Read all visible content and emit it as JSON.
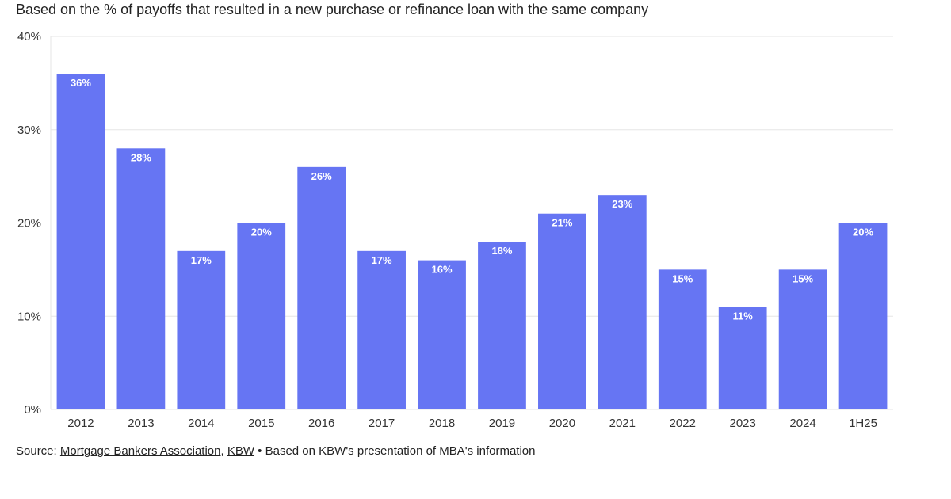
{
  "subtitle": "Based on the % of payoffs that resulted in a new purchase or refinance loan with the same company",
  "source": {
    "prefix": "Source: ",
    "link1": "Mortgage Bankers Association",
    "comma": ", ",
    "link2": "KBW",
    "note": " • Based on KBW's presentation of MBA's information"
  },
  "colors": {
    "bar": "#6675f3",
    "label": "#ffffff",
    "grid": "#e6e6e6"
  },
  "chart_data": {
    "type": "bar",
    "categories": [
      "2012",
      "2013",
      "2014",
      "2015",
      "2016",
      "2017",
      "2018",
      "2019",
      "2020",
      "2021",
      "2022",
      "2023",
      "2024",
      "1H25"
    ],
    "values": [
      36,
      28,
      17,
      20,
      26,
      17,
      16,
      18,
      21,
      23,
      15,
      11,
      15,
      20
    ],
    "data_labels": [
      "36%",
      "28%",
      "17%",
      "20%",
      "26%",
      "17%",
      "16%",
      "18%",
      "21%",
      "23%",
      "15%",
      "11%",
      "15%",
      "20%"
    ],
    "ylim": [
      0,
      40
    ],
    "yticks": [
      0,
      10,
      20,
      30,
      40
    ],
    "ytick_labels": [
      "0%",
      "10%",
      "20%",
      "30%",
      "40%"
    ],
    "xlabel": "",
    "ylabel": "",
    "grid": true,
    "legend": "none"
  }
}
